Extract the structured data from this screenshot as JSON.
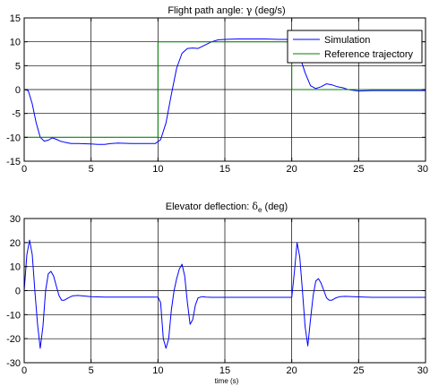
{
  "chart_data": [
    {
      "type": "line",
      "title": "Flight path angle: γ (deg/s)",
      "title_parts": [
        "Flight path angle: ",
        "γ",
        " (deg/s)"
      ],
      "xlabel": "",
      "ylabel": "",
      "xlim": [
        0,
        30
      ],
      "ylim": [
        -15,
        15
      ],
      "xticks": [
        0,
        5,
        10,
        15,
        20,
        25,
        30
      ],
      "yticks": [
        -15,
        -10,
        -5,
        0,
        5,
        10,
        15
      ],
      "grid": true,
      "legend": "top-right",
      "series": [
        {
          "name": "Simulation",
          "color": "#0000ff",
          "x": [
            0,
            0.3,
            0.6,
            0.9,
            1.2,
            1.5,
            1.8,
            2.1,
            2.4,
            2.7,
            3.0,
            3.5,
            4.0,
            5.0,
            5.5,
            6.0,
            6.5,
            7.0,
            8.0,
            9.0,
            9.8,
            10.2,
            10.6,
            11.0,
            11.4,
            11.8,
            12.2,
            12.6,
            13.0,
            13.5,
            14.0,
            14.5,
            15.0,
            16.0,
            17.0,
            18.0,
            19.0,
            19.8,
            20.2,
            20.6,
            21.0,
            21.4,
            21.8,
            22.2,
            22.6,
            23.0,
            23.4,
            23.8,
            24.2,
            25.0,
            26.0,
            27.0,
            28.0,
            29.0,
            30.0
          ],
          "y": [
            0,
            -0.2,
            -3.0,
            -7.0,
            -10.0,
            -10.8,
            -10.6,
            -10.1,
            -10.4,
            -10.8,
            -11.0,
            -11.3,
            -11.3,
            -11.4,
            -11.5,
            -11.5,
            -11.3,
            -11.2,
            -11.3,
            -11.3,
            -11.3,
            -10.5,
            -7.0,
            -1.0,
            4.5,
            7.6,
            8.6,
            8.7,
            8.6,
            9.3,
            10.0,
            10.4,
            10.5,
            10.6,
            10.6,
            10.6,
            10.5,
            10.5,
            9.8,
            7.0,
            3.5,
            0.8,
            0.2,
            0.6,
            1.2,
            1.0,
            0.6,
            0.4,
            0.0,
            -0.3,
            -0.2,
            -0.2,
            -0.2,
            -0.2,
            -0.2
          ]
        },
        {
          "name": "Reference trajectory",
          "color": "#008000",
          "x": [
            0,
            10,
            10,
            20,
            20,
            30
          ],
          "y": [
            -10,
            -10,
            10,
            10,
            0,
            0
          ]
        }
      ]
    },
    {
      "type": "line",
      "title": "Elevator deflection: δe (deg)",
      "title_parts": [
        "Elevator deflection: ",
        "δ",
        "e",
        " (deg)"
      ],
      "xlabel": "time (s)",
      "ylabel": "",
      "xlim": [
        0,
        30
      ],
      "ylim": [
        -30,
        30
      ],
      "xticks": [
        0,
        5,
        10,
        15,
        20,
        25,
        30
      ],
      "yticks": [
        -30,
        -20,
        -10,
        0,
        10,
        20,
        30
      ],
      "grid": true,
      "series": [
        {
          "color": "#0000ff",
          "x": [
            0,
            0.2,
            0.4,
            0.6,
            0.8,
            1.0,
            1.2,
            1.4,
            1.6,
            1.8,
            2.0,
            2.2,
            2.4,
            2.6,
            2.8,
            3.0,
            3.3,
            3.6,
            4.0,
            5.0,
            6.0,
            7.0,
            8.0,
            9.0,
            10.0,
            10.2,
            10.4,
            10.6,
            10.8,
            11.0,
            11.2,
            11.4,
            11.6,
            11.8,
            12.0,
            12.2,
            12.4,
            12.6,
            12.8,
            13.0,
            13.3,
            13.6,
            14.0,
            15.0,
            16.0,
            17.0,
            18.0,
            19.0,
            20.0,
            20.2,
            20.4,
            20.6,
            20.8,
            21.0,
            21.2,
            21.4,
            21.6,
            21.8,
            22.0,
            22.2,
            22.4,
            22.6,
            22.8,
            23.0,
            23.3,
            23.6,
            24.0,
            25.0,
            26.0,
            27.0,
            28.0,
            29.0,
            30.0
          ],
          "y": [
            0,
            15,
            21,
            15,
            0,
            -14,
            -24,
            -15,
            0,
            7,
            8,
            6,
            2,
            -2,
            -4,
            -4,
            -3,
            -2.2,
            -2,
            -2.5,
            -2.7,
            -2.7,
            -2.7,
            -2.7,
            -2.7,
            -5,
            -20,
            -24,
            -20,
            -8,
            0,
            5,
            9,
            11,
            6,
            -5,
            -14,
            -12,
            -6,
            -3,
            -2.5,
            -2.7,
            -2.8,
            -2.8,
            -2.8,
            -2.8,
            -2.8,
            -2.8,
            -2.8,
            8,
            20,
            14,
            0,
            -15,
            -23,
            -12,
            -2,
            4,
            5,
            3,
            0,
            -3,
            -4,
            -4,
            -3,
            -2.5,
            -2.4,
            -2.6,
            -2.8,
            -2.8,
            -2.8,
            -2.8,
            -2.8
          ]
        }
      ]
    }
  ]
}
